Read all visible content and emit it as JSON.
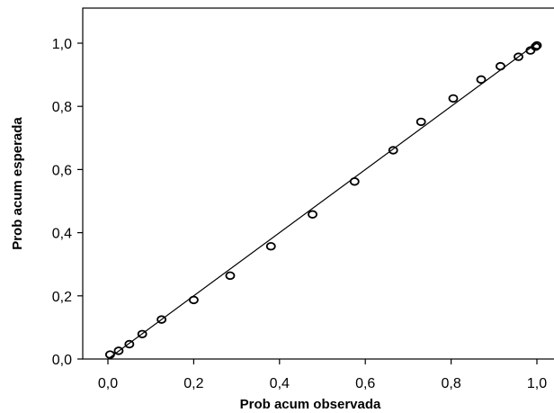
{
  "chart_data": {
    "type": "scatter",
    "title": "",
    "xlabel": "Prob acum observada",
    "ylabel": "Prob acum esperada",
    "xlim": [
      0.0,
      1.0
    ],
    "ylim": [
      0.0,
      1.0
    ],
    "x_ticks": [
      "0,0",
      "0,2",
      "0,4",
      "0,6",
      "0,8",
      "1,0"
    ],
    "y_ticks": [
      "0,0",
      "0,2",
      "0,4",
      "0,6",
      "0,8",
      "1,0"
    ],
    "grid": false,
    "legend": "none",
    "reference_line": {
      "from": [
        0.0,
        0.0
      ],
      "to": [
        1.0,
        1.0
      ]
    },
    "series": [
      {
        "points": [
          {
            "x": 0.005,
            "y": 0.014
          },
          {
            "x": 0.025,
            "y": 0.026
          },
          {
            "x": 0.05,
            "y": 0.047
          },
          {
            "x": 0.08,
            "y": 0.079
          },
          {
            "x": 0.125,
            "y": 0.125
          },
          {
            "x": 0.2,
            "y": 0.187
          },
          {
            "x": 0.285,
            "y": 0.264
          },
          {
            "x": 0.38,
            "y": 0.357
          },
          {
            "x": 0.477,
            "y": 0.458
          },
          {
            "x": 0.575,
            "y": 0.562
          },
          {
            "x": 0.665,
            "y": 0.661
          },
          {
            "x": 0.73,
            "y": 0.751
          },
          {
            "x": 0.805,
            "y": 0.825
          },
          {
            "x": 0.87,
            "y": 0.885
          },
          {
            "x": 0.915,
            "y": 0.927
          },
          {
            "x": 0.957,
            "y": 0.957
          },
          {
            "x": 0.985,
            "y": 0.977
          },
          {
            "x": 0.997,
            "y": 0.989
          },
          {
            "x": 1.0,
            "y": 0.993
          }
        ]
      }
    ]
  },
  "colors": {
    "marker": "#000000",
    "line": "#000000",
    "background": "#ffffff"
  }
}
